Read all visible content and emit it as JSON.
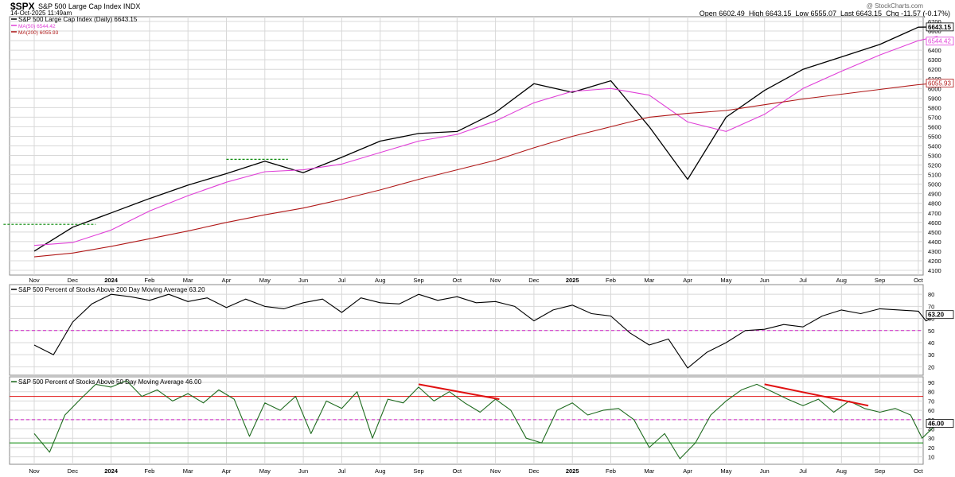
{
  "header": {
    "symbol": "$SPX",
    "name": "S&P 500 Large Cap Index  INDX",
    "date": "14-Oct-2025 11:49am",
    "watermark": "@ StockCharts.com",
    "open_label": "Open",
    "open": "6602.49",
    "high_label": "High",
    "high": "6643.15",
    "low_label": "Low",
    "low": "6555.07",
    "last_label": "Last",
    "last": "6643.15",
    "chg_label": "Chg",
    "chg": "-11.57 (-0.17%)"
  },
  "colors": {
    "price": "#000000",
    "ma50": "#e040d8",
    "ma200": "#b01818",
    "breadth": "#1e6b1e",
    "grid": "#d8d8d8",
    "red_line": "#e01010",
    "dash_green": "#0a8a0a",
    "dash_magenta": "#d020c8",
    "ref_green": "#0a8a0a"
  },
  "chart_data": [
    {
      "type": "line",
      "title": "S&P 500 Large Cap Index (Daily) 6643.15",
      "x_axis": [
        "Nov",
        "Dec",
        "2024",
        "Feb",
        "Mar",
        "Apr",
        "May",
        "Jun",
        "Jul",
        "Aug",
        "Sep",
        "Oct",
        "Nov",
        "Dec",
        "2025",
        "Feb",
        "Mar",
        "Apr",
        "May",
        "Jun",
        "Jul",
        "Aug",
        "Sep",
        "Oct"
      ],
      "y_ticks": [
        4100,
        4200,
        4300,
        4400,
        4500,
        4600,
        4700,
        4800,
        4900,
        5000,
        5100,
        5200,
        5300,
        5400,
        5500,
        5600,
        5700,
        5800,
        5900,
        6000,
        6100,
        6200,
        6300,
        6400,
        6500,
        6600,
        6700
      ],
      "ylim": [
        4050,
        6750
      ],
      "grid": true,
      "legend_position": "top-left",
      "legend": [
        {
          "label": "S&P 500 Large Cap Index (Daily) 6643.15",
          "color": "#000000"
        },
        {
          "label": "MA(50) 6544.42",
          "color": "#e040d8"
        },
        {
          "label": "MA(200) 6055.93",
          "color": "#b01818"
        }
      ],
      "value_tags": [
        {
          "text": "6643.15",
          "value": 6643.15,
          "color": "#000000"
        },
        {
          "text": "6544.42",
          "value": 6544.42,
          "color": "#e040d8"
        },
        {
          "text": "6055.93",
          "value": 6055.93,
          "color": "#b01818"
        }
      ],
      "series": [
        {
          "name": "S&P 500 Large Cap Index",
          "x": [
            0,
            1,
            2,
            3,
            4,
            5,
            6,
            7,
            8,
            9,
            10,
            11,
            12,
            13,
            14,
            15,
            16,
            17,
            18,
            19,
            20,
            21,
            22,
            23,
            23.5
          ],
          "values": [
            4300,
            4550,
            4700,
            4850,
            4990,
            5110,
            5240,
            5120,
            5280,
            5450,
            5530,
            5550,
            5750,
            6050,
            5960,
            6080,
            5600,
            5050,
            5700,
            5980,
            6200,
            6330,
            6460,
            6640,
            6643
          ]
        },
        {
          "name": "MA(50)",
          "x": [
            0,
            1,
            2,
            3,
            4,
            5,
            6,
            7,
            8,
            9,
            10,
            11,
            12,
            13,
            14,
            15,
            16,
            17,
            18,
            19,
            20,
            21,
            22,
            23,
            23.5
          ],
          "values": [
            4360,
            4390,
            4520,
            4720,
            4880,
            5020,
            5130,
            5150,
            5210,
            5330,
            5450,
            5520,
            5660,
            5850,
            5970,
            6000,
            5930,
            5650,
            5550,
            5730,
            6000,
            6180,
            6350,
            6500,
            6544
          ]
        },
        {
          "name": "MA(200)",
          "x": [
            0,
            1,
            2,
            3,
            4,
            5,
            6,
            7,
            8,
            9,
            10,
            11,
            12,
            13,
            14,
            15,
            16,
            17,
            18,
            19,
            20,
            21,
            22,
            23,
            23.5
          ],
          "values": [
            4240,
            4280,
            4350,
            4430,
            4510,
            4600,
            4680,
            4750,
            4840,
            4940,
            5050,
            5150,
            5250,
            5380,
            5500,
            5600,
            5700,
            5740,
            5770,
            5830,
            5890,
            5940,
            5990,
            6040,
            6056
          ]
        }
      ],
      "annotations": [
        {
          "type": "dashed-horizontal",
          "value": 4580,
          "x_from": -0.8,
          "x_to": 1.6,
          "color": "#0a8a0a"
        },
        {
          "type": "dashed-horizontal",
          "value": 5260,
          "x_from": 5.0,
          "x_to": 6.6,
          "color": "#0a8a0a"
        }
      ]
    },
    {
      "type": "line",
      "title": "S&P 500 Percent of Stocks Above 200 Day Moving Average 63.20",
      "y_ticks": [
        20,
        30,
        40,
        50,
        60,
        70,
        80
      ],
      "ylim": [
        13,
        88
      ],
      "grid": true,
      "value_tags": [
        {
          "text": "63.20",
          "value": 63.2
        }
      ],
      "reference_lines": [
        {
          "value": 50,
          "style": "dashed",
          "color": "#d020c8"
        }
      ],
      "series": [
        {
          "name": "S&P 500 Percent of Stocks Above 200 Day Moving Average",
          "x": [
            0,
            0.5,
            1,
            1.5,
            2,
            2.5,
            3,
            3.5,
            4,
            4.5,
            5,
            5.5,
            6,
            6.5,
            7,
            7.5,
            8,
            8.5,
            9,
            9.5,
            10,
            10.5,
            11,
            11.5,
            12,
            12.5,
            13,
            13.5,
            14,
            14.5,
            15,
            15.5,
            16,
            16.5,
            17,
            17.5,
            18,
            18.5,
            19,
            19.5,
            20,
            20.5,
            21,
            21.5,
            22,
            22.5,
            23,
            23.2,
            23.5
          ],
          "values": [
            38,
            30,
            57,
            72,
            80,
            78,
            75,
            80,
            74,
            77,
            69,
            76,
            70,
            68,
            73,
            76,
            65,
            77,
            73,
            72,
            80,
            75,
            78,
            73,
            74,
            70,
            58,
            67,
            71,
            64,
            62,
            48,
            38,
            43,
            19,
            32,
            40,
            50,
            51,
            55,
            53,
            62,
            67,
            64,
            68,
            67,
            66,
            58,
            63.2
          ]
        }
      ]
    },
    {
      "type": "line",
      "title": "S&P 500 Percent of Stocks Above 50 Day Moving Average 46.00",
      "y_ticks": [
        10,
        20,
        30,
        40,
        50,
        60,
        70,
        80,
        90
      ],
      "ylim": [
        2,
        96
      ],
      "grid": true,
      "value_tags": [
        {
          "text": "46.00",
          "value": 46.0
        }
      ],
      "reference_lines": [
        {
          "value": 75,
          "style": "solid",
          "color": "#e01010"
        },
        {
          "value": 50,
          "style": "dashed",
          "color": "#d020c8"
        },
        {
          "value": 25,
          "style": "solid",
          "color": "#0a8a0a"
        }
      ],
      "series": [
        {
          "name": "S&P 500 Percent of Stocks Above 50 Day Moving Average",
          "x": [
            0,
            0.4,
            0.8,
            1.2,
            1.6,
            2,
            2.4,
            2.8,
            3.2,
            3.6,
            4,
            4.4,
            4.8,
            5.2,
            5.6,
            6,
            6.4,
            6.8,
            7.2,
            7.6,
            8,
            8.4,
            8.8,
            9.2,
            9.6,
            10,
            10.4,
            10.8,
            11.2,
            11.6,
            12,
            12.4,
            12.8,
            13.2,
            13.6,
            14,
            14.4,
            14.8,
            15.2,
            15.6,
            16,
            16.4,
            16.8,
            17.2,
            17.6,
            18,
            18.4,
            18.8,
            19.2,
            19.6,
            20,
            20.4,
            20.8,
            21.2,
            21.6,
            22,
            22.4,
            22.8,
            23.1,
            23.5
          ],
          "values": [
            35,
            15,
            55,
            72,
            88,
            85,
            92,
            75,
            82,
            70,
            78,
            68,
            82,
            72,
            32,
            68,
            60,
            75,
            35,
            70,
            62,
            80,
            30,
            72,
            68,
            85,
            70,
            80,
            68,
            58,
            72,
            60,
            30,
            25,
            60,
            68,
            55,
            60,
            62,
            50,
            20,
            35,
            8,
            25,
            55,
            70,
            82,
            88,
            80,
            72,
            65,
            72,
            58,
            70,
            62,
            58,
            62,
            55,
            30,
            46
          ]
        }
      ],
      "annotations": [
        {
          "type": "trendline",
          "x_from": 10.0,
          "y_from": 88,
          "x_to": 12.1,
          "y_to": 72,
          "color": "#e01010"
        },
        {
          "type": "trendline",
          "x_from": 19.0,
          "y_from": 88,
          "x_to": 21.7,
          "y_to": 65,
          "color": "#e01010"
        }
      ]
    }
  ]
}
